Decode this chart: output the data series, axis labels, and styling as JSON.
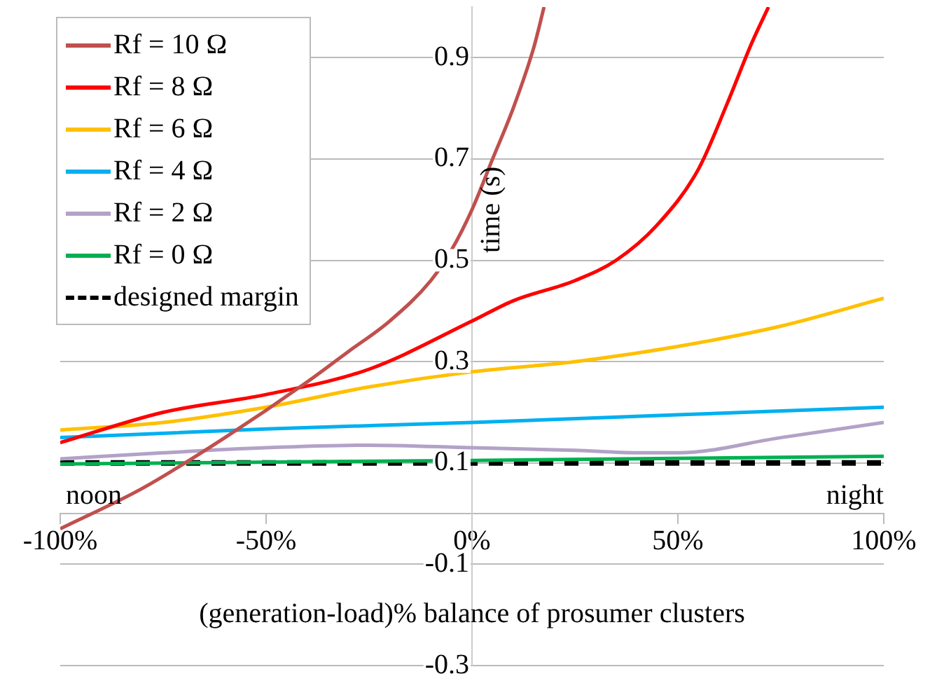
{
  "chart_data": {
    "type": "line",
    "xlabel": "(generation-load)% balance of prosumer clusters",
    "ylabel": "time (s)",
    "xlim": [
      -100,
      100
    ],
    "xticks": [
      {
        "value": -100,
        "label": "-100%"
      },
      {
        "value": -50,
        "label": "-50%"
      },
      {
        "value": 0,
        "label": "0%"
      },
      {
        "value": 50,
        "label": "50%"
      },
      {
        "value": 100,
        "label": "100%"
      }
    ],
    "ylim": [
      -0.3,
      1.0
    ],
    "yticks": [
      -0.3,
      -0.1,
      0.1,
      0.3,
      0.5,
      0.7,
      0.9
    ],
    "grid": "y",
    "legend": "top left",
    "marker": "none",
    "annotations": [
      "noon",
      "night"
    ],
    "series": [
      {
        "name": "Rf = 10 Ω",
        "color": "#c0504d",
        "x": [
          -100,
          -80,
          -60,
          -40,
          -30,
          -20,
          -10,
          -5,
          0,
          5,
          10,
          15,
          17.5
        ],
        "values": [
          -0.03,
          0.05,
          0.15,
          0.26,
          0.32,
          0.38,
          0.46,
          0.52,
          0.6,
          0.7,
          0.8,
          0.92,
          1.0
        ]
      },
      {
        "name": "Rf = 8 Ω",
        "color": "#ff0000",
        "x": [
          -100,
          -75,
          -50,
          -25,
          0,
          10,
          25,
          35,
          45,
          55,
          62,
          68,
          72
        ],
        "values": [
          0.14,
          0.2,
          0.235,
          0.285,
          0.38,
          0.42,
          0.46,
          0.5,
          0.57,
          0.68,
          0.81,
          0.93,
          1.0
        ]
      },
      {
        "name": "Rf = 6 Ω",
        "color": "#ffc000",
        "x": [
          -100,
          -75,
          -50,
          -25,
          0,
          25,
          50,
          75,
          100
        ],
        "values": [
          0.165,
          0.18,
          0.21,
          0.25,
          0.28,
          0.3,
          0.33,
          0.37,
          0.425
        ]
      },
      {
        "name": "Rf = 4 Ω",
        "color": "#00b0f0",
        "x": [
          -100,
          -50,
          0,
          50,
          100
        ],
        "values": [
          0.15,
          0.167,
          0.18,
          0.195,
          0.21
        ]
      },
      {
        "name": "Rf = 2 Ω",
        "color": "#b3a2c7",
        "x": [
          -100,
          -75,
          -50,
          -25,
          0,
          25,
          40,
          50,
          75,
          100
        ],
        "values": [
          0.108,
          0.12,
          0.13,
          0.135,
          0.13,
          0.125,
          0.12,
          0.12,
          0.15,
          0.18
        ]
      },
      {
        "name": "Rf = 0 Ω",
        "color": "#00b050",
        "x": [
          -100,
          0,
          100
        ],
        "values": [
          0.098,
          0.105,
          0.113
        ]
      },
      {
        "name": "designed margin",
        "color": "#000000",
        "line_style": "dashed",
        "x": [
          -100,
          100
        ],
        "values": [
          0.1,
          0.1
        ]
      }
    ]
  }
}
